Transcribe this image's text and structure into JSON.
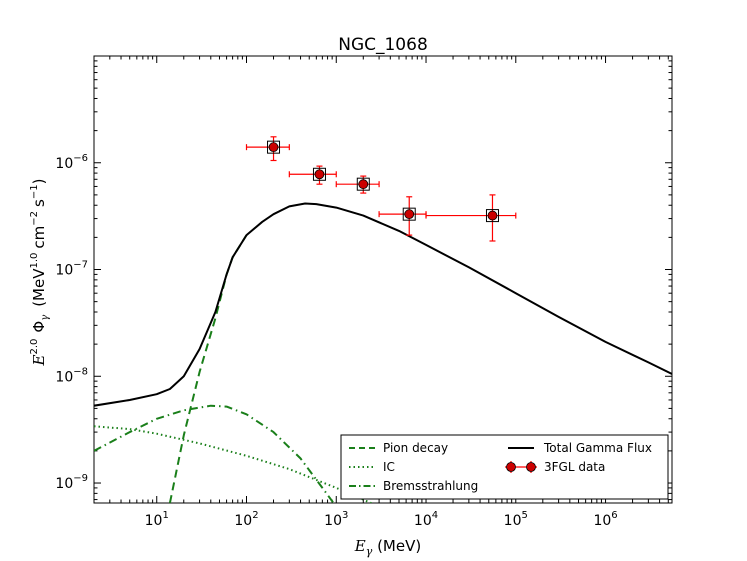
{
  "chart_data": {
    "type": "line",
    "title": "NGC_1068",
    "xlabel_main": "E",
    "xlabel_sub": "γ",
    "xlabel_unit": " (MeV)",
    "ylabel_main": "E",
    "ylabel_exp": "2.0",
    "ylabel_phi": "Φ",
    "ylabel_phi_sub": "γ",
    "ylabel_unit_a": "(MeV",
    "ylabel_unit_exp1": "1.0",
    "ylabel_unit_b": "cm",
    "ylabel_unit_exp2": "−2",
    "ylabel_unit_c": "s",
    "ylabel_unit_exp3": "−1",
    "ylabel_unit_d": ")",
    "x_scale": "log",
    "y_scale": "log",
    "xlim": [
      2,
      5500000
    ],
    "ylim": [
      6.5e-10,
      1e-05
    ],
    "x_ticks": [
      {
        "value": 10,
        "base": "10",
        "exp": "1"
      },
      {
        "value": 100,
        "base": "10",
        "exp": "2"
      },
      {
        "value": 1000,
        "base": "10",
        "exp": "3"
      },
      {
        "value": 10000,
        "base": "10",
        "exp": "4"
      },
      {
        "value": 100000,
        "base": "10",
        "exp": "5"
      },
      {
        "value": 1000000,
        "base": "10",
        "exp": "6"
      }
    ],
    "y_ticks": [
      {
        "value": 1e-09,
        "base": "10",
        "exp": "−9"
      },
      {
        "value": 1e-08,
        "base": "10",
        "exp": "−8"
      },
      {
        "value": 1e-07,
        "base": "10",
        "exp": "−7"
      },
      {
        "value": 1e-06,
        "base": "10",
        "exp": "−6"
      }
    ],
    "series": [
      {
        "name": "Pion decay",
        "style": "dashed",
        "color": "#1a7f1a",
        "points": [
          [
            14,
            6.5e-10
          ],
          [
            20,
            2.8e-09
          ],
          [
            30,
            1.1e-08
          ],
          [
            45,
            3.5e-08
          ],
          [
            60,
            9e-08
          ],
          [
            70,
            1.3e-07
          ],
          [
            100,
            2.1e-07
          ]
        ]
      },
      {
        "name": "IC",
        "style": "dotted",
        "color": "#1a7f1a",
        "points": [
          [
            2,
            3.4e-09
          ],
          [
            5,
            3.2e-09
          ],
          [
            10,
            2.9e-09
          ],
          [
            30,
            2.35e-09
          ],
          [
            100,
            1.8e-09
          ],
          [
            300,
            1.35e-09
          ],
          [
            1000,
            9e-10
          ],
          [
            2000,
            7e-10
          ],
          [
            3000,
            6e-10
          ]
        ]
      },
      {
        "name": "Bremsstrahlung",
        "style": "dashdot",
        "color": "#1a7f1a",
        "points": [
          [
            2,
            2e-09
          ],
          [
            5,
            3e-09
          ],
          [
            10,
            4e-09
          ],
          [
            20,
            4.8e-09
          ],
          [
            40,
            5.3e-09
          ],
          [
            60,
            5.2e-09
          ],
          [
            100,
            4.4e-09
          ],
          [
            200,
            3e-09
          ],
          [
            400,
            1.7e-09
          ],
          [
            700,
            9e-10
          ],
          [
            1000,
            6e-10
          ]
        ]
      },
      {
        "name": "Total Gamma Flux",
        "style": "solid",
        "color": "#000000",
        "points": [
          [
            2,
            5.3e-09
          ],
          [
            5,
            6e-09
          ],
          [
            10,
            6.8e-09
          ],
          [
            14,
            7.6e-09
          ],
          [
            20,
            1e-08
          ],
          [
            30,
            1.8e-08
          ],
          [
            45,
            4e-08
          ],
          [
            60,
            9e-08
          ],
          [
            70,
            1.3e-07
          ],
          [
            100,
            2.1e-07
          ],
          [
            150,
            2.8e-07
          ],
          [
            200,
            3.3e-07
          ],
          [
            300,
            3.9e-07
          ],
          [
            450,
            4.15e-07
          ],
          [
            600,
            4.1e-07
          ],
          [
            1000,
            3.8e-07
          ],
          [
            2000,
            3.2e-07
          ],
          [
            5000,
            2.3e-07
          ],
          [
            10000,
            1.7e-07
          ],
          [
            30000,
            1.05e-07
          ],
          [
            100000,
            6e-08
          ],
          [
            300000,
            3.6e-08
          ],
          [
            1000000,
            2.1e-08
          ],
          [
            3000000,
            1.35e-08
          ],
          [
            5500000,
            1.05e-08
          ]
        ]
      }
    ],
    "points_series": {
      "name": "3FGL data",
      "color": "#ff0000",
      "points": [
        {
          "x": 200,
          "y": 1.4e-06,
          "xlo": 100,
          "xhi": 300,
          "ylo": 1.05e-06,
          "yhi": 1.75e-06
        },
        {
          "x": 650,
          "y": 7.8e-07,
          "xlo": 300,
          "xhi": 1000,
          "ylo": 6.3e-07,
          "yhi": 9.3e-07
        },
        {
          "x": 2000,
          "y": 6.3e-07,
          "xlo": 1000,
          "xhi": 3000,
          "ylo": 5.2e-07,
          "yhi": 7.5e-07
        },
        {
          "x": 6500,
          "y": 3.3e-07,
          "xlo": 3000,
          "xhi": 10000,
          "ylo": 2.1e-07,
          "yhi": 4.8e-07
        },
        {
          "x": 55000,
          "y": 3.2e-07,
          "xlo": 10000,
          "xhi": 100000,
          "ylo": 1.85e-07,
          "yhi": 5e-07
        }
      ]
    },
    "legend": {
      "placement": "bottom-right",
      "entries": [
        {
          "label": "Pion decay",
          "style": "dashed"
        },
        {
          "label": "IC",
          "style": "dotted"
        },
        {
          "label": "Bremsstrahlung",
          "style": "dashdot"
        },
        {
          "label": "Total Gamma Flux",
          "style": "solid"
        },
        {
          "label": "3FGL data",
          "style": "marker"
        }
      ]
    },
    "colors": {
      "model": "#1a7f1a",
      "total": "#000000",
      "data": "#ff0000",
      "marker_fill": "#cc0000"
    }
  }
}
